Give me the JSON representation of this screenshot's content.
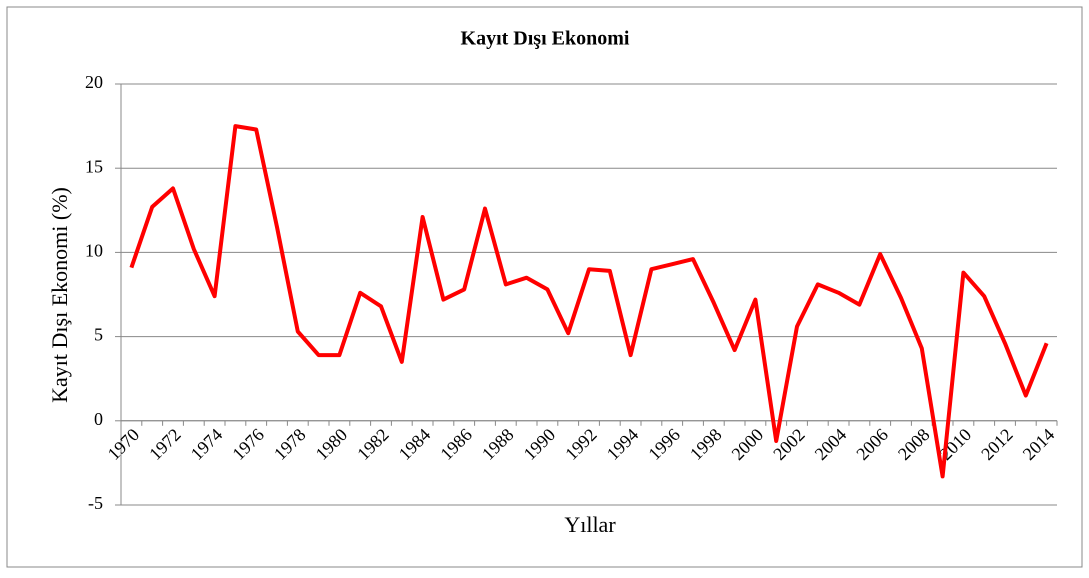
{
  "chart_data": {
    "type": "line",
    "title": "Kayıt Dışı Ekonomi",
    "x_label": "Yıllar",
    "y_label": "Kayıt Dışı Ekonomi (%)",
    "categories": [
      "1970",
      null,
      "1972",
      null,
      "1974",
      null,
      "1976",
      null,
      "1978",
      null,
      "1980",
      null,
      "1982",
      null,
      "1984",
      null,
      "1986",
      null,
      "1988",
      null,
      "1990",
      null,
      "1992",
      null,
      "1994",
      null,
      "1996",
      null,
      "1998",
      null,
      "2000",
      null,
      "2002",
      null,
      "2004",
      null,
      "2006",
      null,
      "2008",
      null,
      "2010",
      null,
      "2012",
      null,
      "2014"
    ],
    "series": [
      {
        "name": "Kayıt Dışı Ekonomi",
        "color": "#ff0000",
        "values": [
          9.1,
          12.7,
          13.8,
          10.2,
          7.4,
          17.5,
          17.3,
          11.5,
          5.3,
          3.9,
          3.9,
          7.6,
          6.8,
          3.5,
          12.1,
          7.2,
          7.8,
          12.6,
          8.1,
          8.5,
          7.8,
          5.2,
          9.0,
          8.9,
          3.9,
          9.0,
          9.3,
          9.6,
          7.0,
          4.2,
          7.2,
          -1.2,
          5.6,
          8.1,
          7.6,
          6.9,
          9.9,
          7.3,
          4.3,
          -3.3,
          8.8,
          7.4,
          4.6,
          1.5,
          4.6
        ]
      }
    ],
    "ylim": [
      -5,
      20
    ],
    "yticks": [
      -5,
      0,
      5,
      10,
      15,
      20
    ],
    "grid": true
  }
}
